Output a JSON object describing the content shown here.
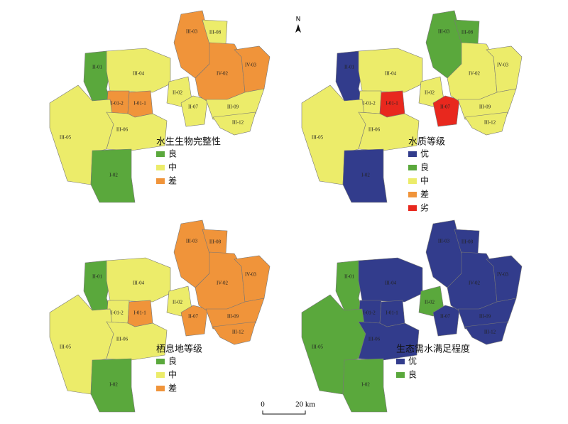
{
  "north": "N",
  "scale_bar": {
    "start": "0",
    "end": "20 km"
  },
  "zones": [
    "II-01",
    "III-04",
    "I-01-2",
    "I-01-1",
    "III-05",
    "III-06",
    "I-02",
    "II-02",
    "II-07",
    "III-03",
    "III-08",
    "IV-02",
    "IV-03",
    "III-09",
    "III-12"
  ],
  "panels": [
    {
      "legend_title": "水生生物完整性",
      "legend": [
        {
          "label": "良",
          "color": "#5aa83c"
        },
        {
          "label": "中",
          "color": "#ecec6a"
        },
        {
          "label": "差",
          "color": "#f0943a"
        }
      ],
      "zone_colors": [
        "#5aa83c",
        "#ecec6a",
        "#f0943a",
        "#f0943a",
        "#ecec6a",
        "#ecec6a",
        "#5aa83c",
        "#ecec6a",
        "#ecec6a",
        "#f0943a",
        "#ecec6a",
        "#f0943a",
        "#f0943a",
        "#ecec6a",
        "#ecec6a"
      ]
    },
    {
      "legend_title": "水质等级",
      "legend": [
        {
          "label": "优",
          "color": "#323c8c"
        },
        {
          "label": "良",
          "color": "#5aa83c"
        },
        {
          "label": "中",
          "color": "#ecec6a"
        },
        {
          "label": "差",
          "color": "#f0943a"
        },
        {
          "label": "劣",
          "color": "#e8281e"
        }
      ],
      "zone_colors": [
        "#323c8c",
        "#ecec6a",
        "#ecec6a",
        "#e8281e",
        "#ecec6a",
        "#ecec6a",
        "#323c8c",
        "#ecec6a",
        "#e8281e",
        "#5aa83c",
        "#5aa83c",
        "#ecec6a",
        "#ecec6a",
        "#ecec6a",
        "#ecec6a"
      ]
    },
    {
      "legend_title": "栖息地等级",
      "legend": [
        {
          "label": "良",
          "color": "#5aa83c"
        },
        {
          "label": "中",
          "color": "#ecec6a"
        },
        {
          "label": "差",
          "color": "#f0943a"
        }
      ],
      "zone_colors": [
        "#5aa83c",
        "#ecec6a",
        "#ecec6a",
        "#f0943a",
        "#ecec6a",
        "#ecec6a",
        "#5aa83c",
        "#ecec6a",
        "#f0943a",
        "#f0943a",
        "#f0943a",
        "#f0943a",
        "#f0943a",
        "#f0943a",
        "#f0943a"
      ]
    },
    {
      "legend_title": "生态需水满足程度",
      "legend": [
        {
          "label": "优",
          "color": "#323c8c"
        },
        {
          "label": "良",
          "color": "#5aa83c"
        }
      ],
      "zone_colors": [
        "#5aa83c",
        "#323c8c",
        "#323c8c",
        "#323c8c",
        "#5aa83c",
        "#323c8c",
        "#5aa83c",
        "#5aa83c",
        "#323c8c",
        "#323c8c",
        "#323c8c",
        "#323c8c",
        "#323c8c",
        "#323c8c",
        "#323c8c"
      ]
    }
  ]
}
